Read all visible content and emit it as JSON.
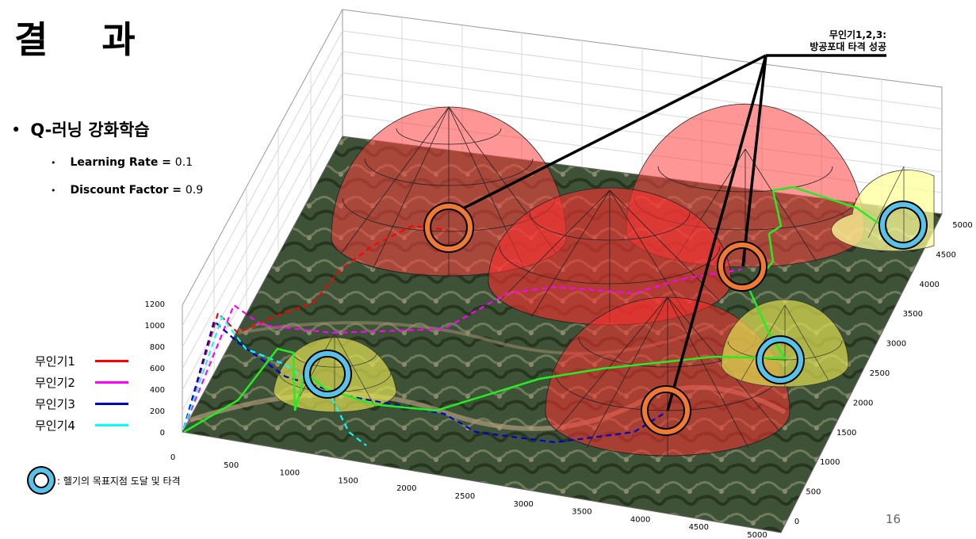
{
  "slide": {
    "title": "결  과",
    "bullet": "Q-러닝 강화학습",
    "params": [
      {
        "name": "Learning Rate",
        "value": "0.1"
      },
      {
        "name": "Discount Factor",
        "value": "0.9"
      }
    ],
    "annotation_line1": "무인기1,2,3:",
    "annotation_line2": "방공포대 타격 성공",
    "target_legend": ": 헬기의 목표지점 도달 및 타격",
    "page_number": "16"
  },
  "legend": [
    {
      "label": "무인기1",
      "color": "#ff0000"
    },
    {
      "label": "무인기2",
      "color": "#ff00ff"
    },
    {
      "label": "무인기3",
      "color": "#0000cc"
    },
    {
      "label": "무인기4",
      "color": "#00ffff"
    }
  ],
  "axes": {
    "z_ticks": [
      "0",
      "200",
      "400",
      "600",
      "800",
      "1000",
      "1200"
    ],
    "x_ticks": [
      "0",
      "500",
      "1000",
      "1500",
      "2000",
      "2500",
      "3000",
      "3500",
      "4000",
      "4500",
      "5000"
    ],
    "y_ticks": [
      "0",
      "500",
      "1000",
      "1500",
      "2000",
      "2500",
      "3000",
      "3500",
      "4000",
      "4500",
      "5000"
    ]
  },
  "colors": {
    "threat_dome": "#ff4040",
    "safe_dome": "#e0e050",
    "helicopter_path": "#22ee22",
    "target_ring_uav": "#f07a35",
    "target_ring_heli": "#58c2ea"
  }
}
